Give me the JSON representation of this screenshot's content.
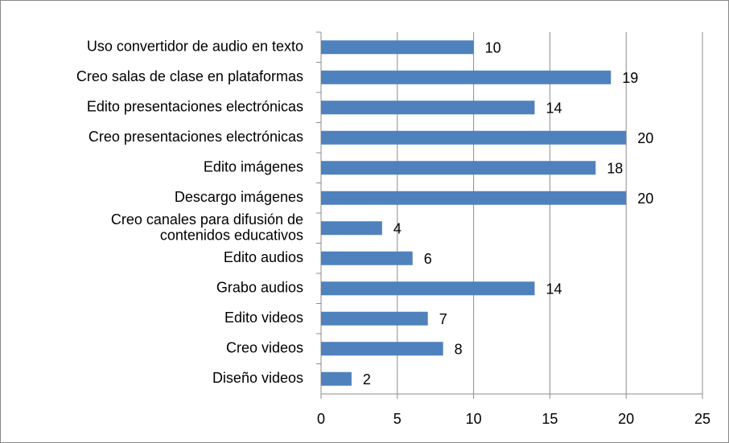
{
  "chart_data": {
    "type": "barh",
    "categories": [
      "Uso convertidor de audio en texto",
      "Creo salas de clase en plataformas",
      "Edito presentaciones electrónicas",
      "Creo presentaciones electrónicas",
      "Edito imágenes",
      "Descargo imágenes",
      "Creo canales para difusión de\ncontenidos educativos",
      "Edito audios",
      "Grabo audios",
      "Edito videos",
      "Creo videos",
      "Diseño videos"
    ],
    "values": [
      10,
      19,
      14,
      20,
      18,
      20,
      4,
      6,
      14,
      7,
      8,
      2
    ],
    "color": "#4f81bd",
    "xlim": [
      0,
      25
    ],
    "xticks": [
      0,
      5,
      10,
      15,
      20,
      25
    ],
    "grid": true
  }
}
